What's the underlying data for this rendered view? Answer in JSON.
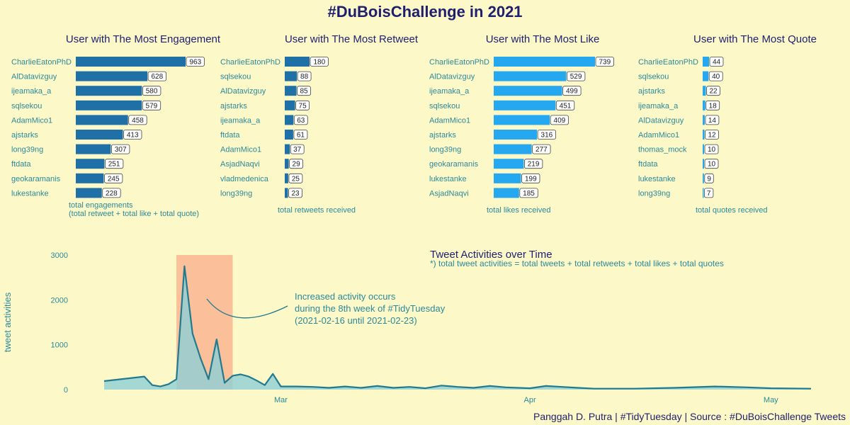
{
  "title": "#DuBoisChallenge in 2021",
  "colors": {
    "background": "#fdf8c8",
    "dark_text": "#1e1f6e",
    "teal_text": "#2a8a9a",
    "bar_dark": "#1f70a6",
    "bar_light": "#26a8f0",
    "line": "#217a8e",
    "area": "#8fd0d6",
    "highlight": "#fbbf9a"
  },
  "chart_data": [
    {
      "type": "bar",
      "title": "User with The Most Engagement",
      "xlabel": "total engagements\n(total retweet + total like + total quote)",
      "categories": [
        "CharlieEatonPhD",
        "AlDatavizguy",
        "ijeamaka_a",
        "sqlsekou",
        "AdamMico1",
        "ajstarks",
        "long39ng",
        "ftdata",
        "geokaramanis",
        "lukestanke"
      ],
      "values": [
        963,
        628,
        580,
        579,
        458,
        413,
        307,
        251,
        245,
        228
      ]
    },
    {
      "type": "bar",
      "title": "User with The Most Retweet",
      "xlabel": "total retweets received",
      "categories": [
        "CharlieEatonPhD",
        "sqlsekou",
        "AlDatavizguy",
        "ajstarks",
        "ijeamaka_a",
        "ftdata",
        "AdamMico1",
        "AsjadNaqvi",
        "vladmedenica",
        "long39ng"
      ],
      "values": [
        180,
        88,
        85,
        75,
        63,
        61,
        37,
        29,
        25,
        23
      ]
    },
    {
      "type": "bar",
      "title": "User with The Most Like",
      "xlabel": "total likes received",
      "categories": [
        "CharlieEatonPhD",
        "AlDatavizguy",
        "ijeamaka_a",
        "sqlsekou",
        "AdamMico1",
        "ajstarks",
        "long39ng",
        "geokaramanis",
        "lukestanke",
        "AsjadNaqvi"
      ],
      "values": [
        739,
        529,
        499,
        451,
        409,
        316,
        277,
        219,
        199,
        185
      ]
    },
    {
      "type": "bar",
      "title": "User with The Most Quote",
      "xlabel": "total quotes received",
      "categories": [
        "CharlieEatonPhD",
        "sqlsekou",
        "ajstarks",
        "ijeamaka_a",
        "AlDatavizguy",
        "AdamMico1",
        "thomas_mock",
        "ftdata",
        "lukestanke",
        "long39ng"
      ],
      "values": [
        44,
        40,
        22,
        18,
        14,
        12,
        10,
        10,
        9,
        7
      ]
    },
    {
      "type": "area",
      "title": "Tweet Activities over Time",
      "subtitle": "*) total tweet activities = total tweets + total retweets + total likes + total quotes",
      "xlabel": "",
      "ylabel": "tweet activities",
      "ylim": [
        0,
        3000
      ],
      "yticks": [
        0,
        1000,
        2000,
        3000
      ],
      "xticks": [
        {
          "label": "Mar",
          "date": "2021-03-01"
        },
        {
          "label": "Apr",
          "date": "2021-04-01"
        },
        {
          "label": "May",
          "date": "2021-05-01"
        }
      ],
      "xlim": [
        "2021-02-07",
        "2021-05-06"
      ],
      "highlight": {
        "start": "2021-02-16",
        "end": "2021-02-23"
      },
      "annotation": "Increased activity occurs\nduring the 8th week of #TidyTuesday\n(2021-02-16 until 2021-02-23)",
      "points": [
        [
          "2021-02-07",
          190
        ],
        [
          "2021-02-12",
          290
        ],
        [
          "2021-02-13",
          100
        ],
        [
          "2021-02-14",
          70
        ],
        [
          "2021-02-15",
          120
        ],
        [
          "2021-02-16",
          230
        ],
        [
          "2021-02-17",
          2750
        ],
        [
          "2021-02-18",
          1250
        ],
        [
          "2021-02-19",
          700
        ],
        [
          "2021-02-20",
          230
        ],
        [
          "2021-02-21",
          1120
        ],
        [
          "2021-02-22",
          150
        ],
        [
          "2021-02-23",
          310
        ],
        [
          "2021-02-24",
          340
        ],
        [
          "2021-02-25",
          290
        ],
        [
          "2021-02-26",
          200
        ],
        [
          "2021-02-27",
          100
        ],
        [
          "2021-02-28",
          350
        ],
        [
          "2021-03-01",
          70
        ],
        [
          "2021-03-03",
          70
        ],
        [
          "2021-03-05",
          60
        ],
        [
          "2021-03-07",
          40
        ],
        [
          "2021-03-09",
          70
        ],
        [
          "2021-03-11",
          40
        ],
        [
          "2021-03-13",
          80
        ],
        [
          "2021-03-15",
          40
        ],
        [
          "2021-03-17",
          60
        ],
        [
          "2021-03-19",
          30
        ],
        [
          "2021-03-21",
          90
        ],
        [
          "2021-03-23",
          60
        ],
        [
          "2021-03-25",
          40
        ],
        [
          "2021-03-27",
          80
        ],
        [
          "2021-03-29",
          50
        ],
        [
          "2021-04-01",
          30
        ],
        [
          "2021-04-03",
          80
        ],
        [
          "2021-04-05",
          60
        ],
        [
          "2021-04-07",
          40
        ],
        [
          "2021-04-09",
          20
        ],
        [
          "2021-04-14",
          20
        ],
        [
          "2021-04-19",
          40
        ],
        [
          "2021-04-24",
          70
        ],
        [
          "2021-04-28",
          50
        ],
        [
          "2021-05-01",
          30
        ],
        [
          "2021-05-06",
          20
        ]
      ]
    }
  ],
  "credit": "Panggah D. Putra | #TidyTuesday | Source : #DuBoisChallenge Tweets"
}
